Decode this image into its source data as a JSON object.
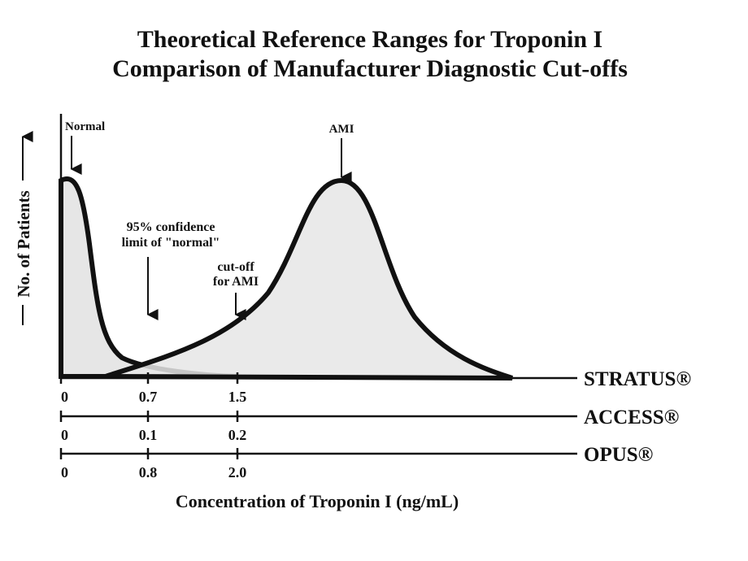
{
  "header": {
    "title_lines": [
      "Theoretical Reference Ranges for Troponin I",
      "Comparison of Manufacturer Diagnostic Cut-offs"
    ]
  },
  "y_axis_label": "No. of Patients",
  "x_axis_label": "Concentration of Troponin I  (ng/mL)",
  "annotations": {
    "normal": "Normal",
    "ami": "AMI",
    "confidence": [
      "95% confidence",
      "limit of \"normal\""
    ],
    "cutoff": [
      "cut-off",
      "for AMI"
    ]
  },
  "scales": [
    {
      "name": "STRATUS®",
      "ticks": [
        "0",
        "0.7",
        "1.5"
      ]
    },
    {
      "name": "ACCESS®",
      "ticks": [
        "0",
        "0.1",
        "0.2"
      ]
    },
    {
      "name": "OPUS®",
      "ticks": [
        "0",
        "0.8",
        "2.0"
      ]
    }
  ]
}
